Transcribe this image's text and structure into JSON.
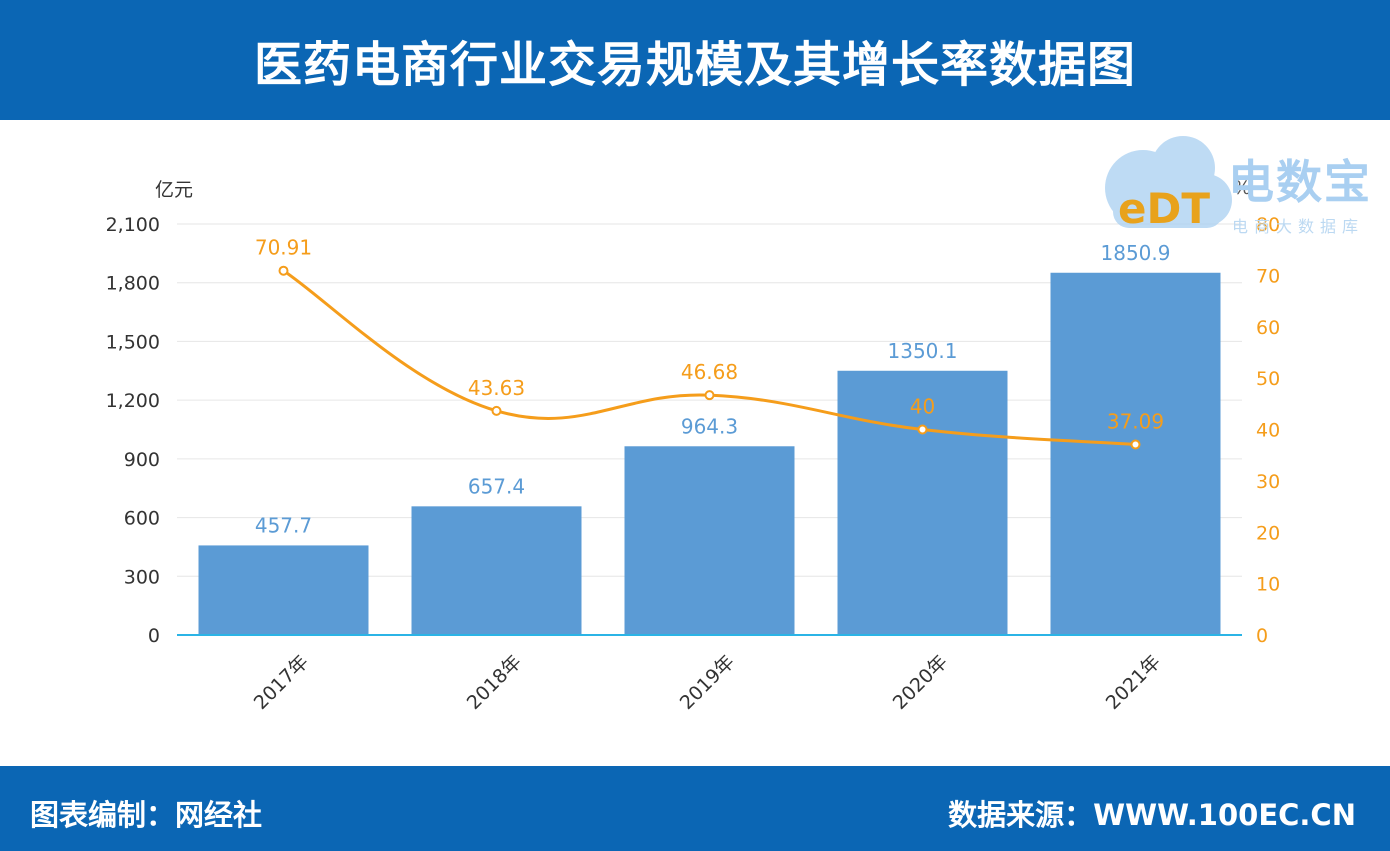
{
  "header": {
    "title": "医药电商行业交易规模及其增长率数据图"
  },
  "footer": {
    "left": "图表编制：网经社",
    "right": "数据来源：WWW.100EC.CN"
  },
  "watermark": {
    "logo_text": "eDT",
    "name": "电数宝",
    "subtitle": "电商大数据库"
  },
  "colors": {
    "header_bg": "#0b66b4",
    "bar": "#5b9bd5",
    "line": "#f59d1b",
    "axis_line": "#2bb4e6",
    "grid": "#e6e6e6"
  },
  "chart_data": {
    "type": "bar",
    "categories": [
      "2017年",
      "2018年",
      "2019年",
      "2020年",
      "2021年"
    ],
    "series": [
      {
        "type": "bar",
        "axis": "left",
        "values": [
          457.7,
          657.4,
          964.3,
          1350.1,
          1850.9
        ]
      },
      {
        "type": "line",
        "axis": "right",
        "values": [
          70.91,
          43.63,
          46.68,
          40,
          37.09
        ]
      }
    ],
    "y_left": {
      "unit": "亿元",
      "min": 0,
      "max": 2100,
      "ticks": [
        "0",
        "300",
        "600",
        "900",
        "1,200",
        "1,500",
        "1,800",
        "2,100"
      ]
    },
    "y_right": {
      "unit": "%",
      "min": 0,
      "max": 80,
      "ticks": [
        "0",
        "10",
        "20",
        "30",
        "40",
        "50",
        "60",
        "70",
        "80"
      ]
    },
    "bar_labels": [
      "457.7",
      "657.4",
      "964.3",
      "1350.1",
      "1850.9"
    ],
    "line_labels": [
      "70.91",
      "43.63",
      "46.68",
      "40",
      "37.09"
    ],
    "grid": true
  }
}
